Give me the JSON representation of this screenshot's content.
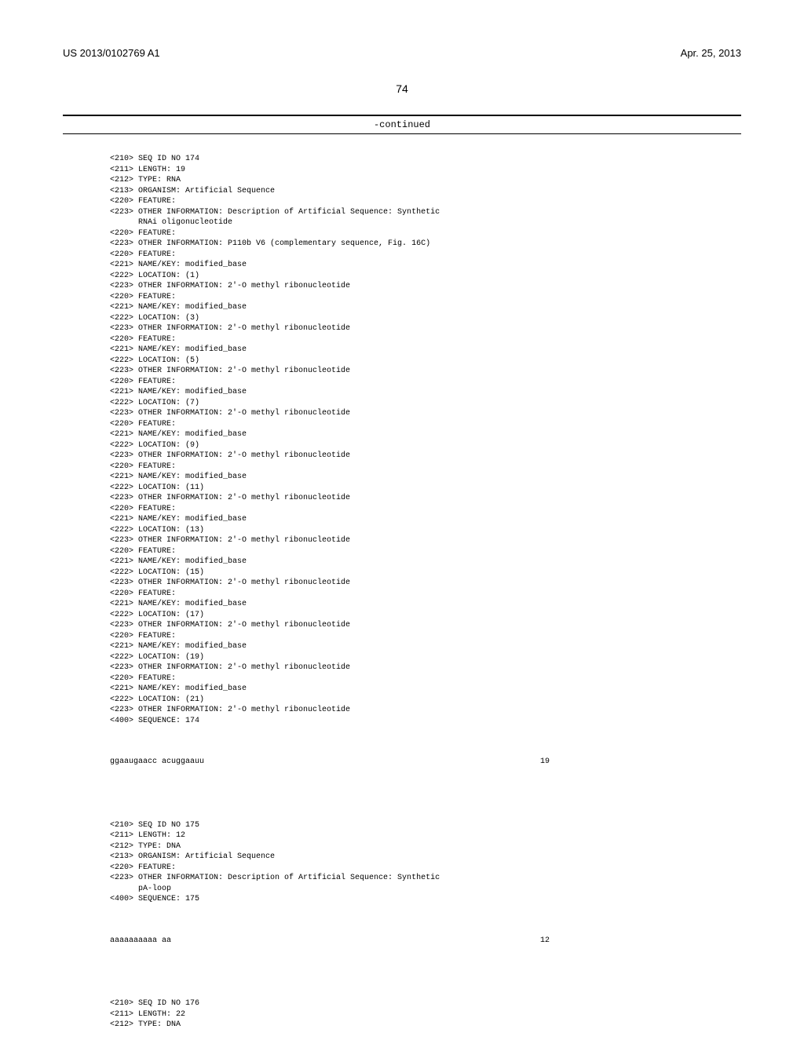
{
  "header": {
    "left": "US 2013/0102769 A1",
    "right": "Apr. 25, 2013"
  },
  "page_number": "74",
  "continued_label": "-continued",
  "seq174": {
    "lines": [
      "<210> SEQ ID NO 174",
      "<211> LENGTH: 19",
      "<212> TYPE: RNA",
      "<213> ORGANISM: Artificial Sequence",
      "<220> FEATURE:",
      "<223> OTHER INFORMATION: Description of Artificial Sequence: Synthetic",
      "      RNAi oligonucleotide",
      "<220> FEATURE:",
      "<223> OTHER INFORMATION: P110b V6 (complementary sequence, Fig. 16C)",
      "<220> FEATURE:",
      "<221> NAME/KEY: modified_base",
      "<222> LOCATION: (1)",
      "<223> OTHER INFORMATION: 2'-O methyl ribonucleotide",
      "<220> FEATURE:",
      "<221> NAME/KEY: modified_base",
      "<222> LOCATION: (3)",
      "<223> OTHER INFORMATION: 2'-O methyl ribonucleotide",
      "<220> FEATURE:",
      "<221> NAME/KEY: modified_base",
      "<222> LOCATION: (5)",
      "<223> OTHER INFORMATION: 2'-O methyl ribonucleotide",
      "<220> FEATURE:",
      "<221> NAME/KEY: modified_base",
      "<222> LOCATION: (7)",
      "<223> OTHER INFORMATION: 2'-O methyl ribonucleotide",
      "<220> FEATURE:",
      "<221> NAME/KEY: modified_base",
      "<222> LOCATION: (9)",
      "<223> OTHER INFORMATION: 2'-O methyl ribonucleotide",
      "<220> FEATURE:",
      "<221> NAME/KEY: modified_base",
      "<222> LOCATION: (11)",
      "<223> OTHER INFORMATION: 2'-O methyl ribonucleotide",
      "<220> FEATURE:",
      "<221> NAME/KEY: modified_base",
      "<222> LOCATION: (13)",
      "<223> OTHER INFORMATION: 2'-O methyl ribonucleotide",
      "<220> FEATURE:",
      "<221> NAME/KEY: modified_base",
      "<222> LOCATION: (15)",
      "<223> OTHER INFORMATION: 2'-O methyl ribonucleotide",
      "<220> FEATURE:",
      "<221> NAME/KEY: modified_base",
      "<222> LOCATION: (17)",
      "<223> OTHER INFORMATION: 2'-O methyl ribonucleotide",
      "<220> FEATURE:",
      "<221> NAME/KEY: modified_base",
      "<222> LOCATION: (19)",
      "<223> OTHER INFORMATION: 2'-O methyl ribonucleotide",
      "<220> FEATURE:",
      "<221> NAME/KEY: modified_base",
      "<222> LOCATION: (21)",
      "<223> OTHER INFORMATION: 2'-O methyl ribonucleotide",
      "",
      "<400> SEQUENCE: 174"
    ],
    "sequence_text": "ggaaugaacc acuggaauu",
    "sequence_len": "19"
  },
  "seq175": {
    "lines": [
      "<210> SEQ ID NO 175",
      "<211> LENGTH: 12",
      "<212> TYPE: DNA",
      "<213> ORGANISM: Artificial Sequence",
      "<220> FEATURE:",
      "<223> OTHER INFORMATION: Description of Artificial Sequence: Synthetic",
      "      pA-loop",
      "",
      "<400> SEQUENCE: 175"
    ],
    "sequence_text": "aaaaaaaaaa aa",
    "sequence_len": "12"
  },
  "seq176": {
    "lines": [
      "<210> SEQ ID NO 176",
      "<211> LENGTH: 22",
      "<212> TYPE: DNA"
    ]
  }
}
